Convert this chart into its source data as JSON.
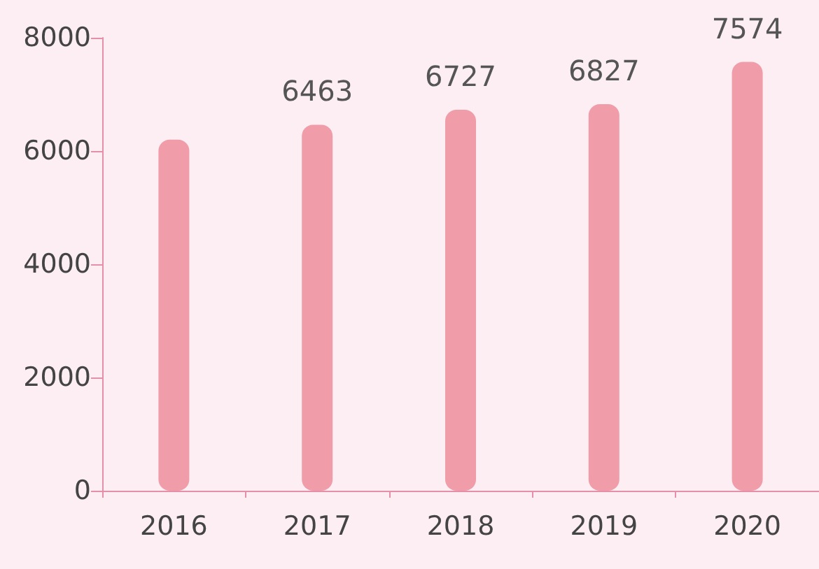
{
  "chart_data": {
    "type": "bar",
    "categories": [
      "2016",
      "2017",
      "2018",
      "2019",
      "2020"
    ],
    "values": [
      6200,
      6463,
      6727,
      6827,
      7574
    ],
    "value_labels": [
      null,
      "6463",
      "6727",
      "6827",
      "7574"
    ],
    "color": "#f19ca9",
    "ylim": [
      0,
      8000
    ],
    "yticks": [
      0,
      2000,
      4000,
      6000,
      8000
    ],
    "grid": false
  }
}
